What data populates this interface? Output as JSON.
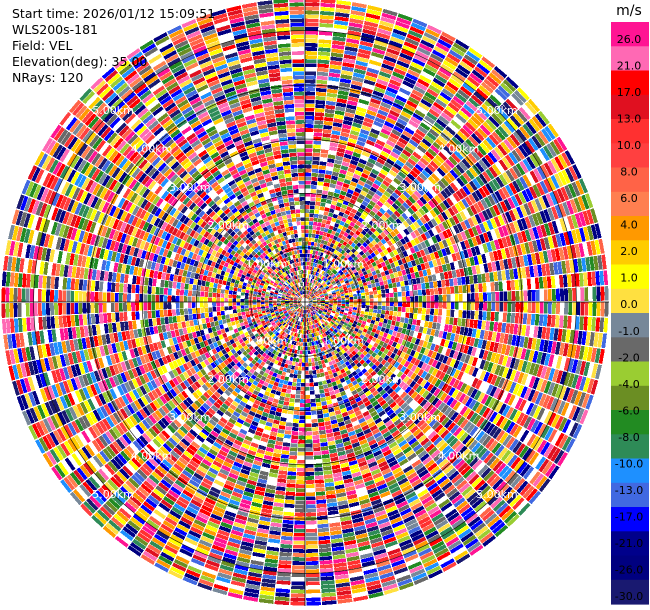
{
  "header": {
    "start_time": "Start time: 2026/01/12 15:09:51",
    "station": "WLS200s-181",
    "field": "Field: VEL",
    "elevation": "Elevation(deg): 35.00",
    "nrays": "NRays: 120"
  },
  "chart_data": {
    "type": "heatmap",
    "projection": "polar-ppi",
    "field": "VEL",
    "nrays": 120,
    "range_rings_km": [
      1,
      2,
      3,
      4,
      5
    ],
    "ring_labels": [
      "1.00km",
      "2.00km",
      "3.00km",
      "4.00km",
      "5.00km"
    ],
    "max_range_km": 5.6,
    "grid": true,
    "colorbar": {
      "title": "m/s",
      "placement": "right",
      "tick_labels": [
        "26.0",
        "21.0",
        "17.0",
        "13.0",
        "10.0",
        "8.0",
        "6.0",
        "4.0",
        "2.0",
        "1.0",
        "0.0",
        "-1.0",
        "-2.0",
        "-4.0",
        "-6.0",
        "-8.0",
        "-10.0",
        "-13.0",
        "-17.0",
        "-21.0",
        "-26.0",
        "-30.0"
      ],
      "colors": [
        "#ff1493",
        "#ff69b4",
        "#ff0000",
        "#e01020",
        "#ff3030",
        "#ff4040",
        "#ff6347",
        "#ff7f50",
        "#ff9900",
        "#ffcc00",
        "#ffff00",
        "#ffe040",
        "#778899",
        "#696969",
        "#9acd32",
        "#6b8e23",
        "#228b22",
        "#2e8b57",
        "#1e90ff",
        "#4169e1",
        "#0000ff",
        "#00008b",
        "#000080",
        "#191970"
      ]
    }
  }
}
